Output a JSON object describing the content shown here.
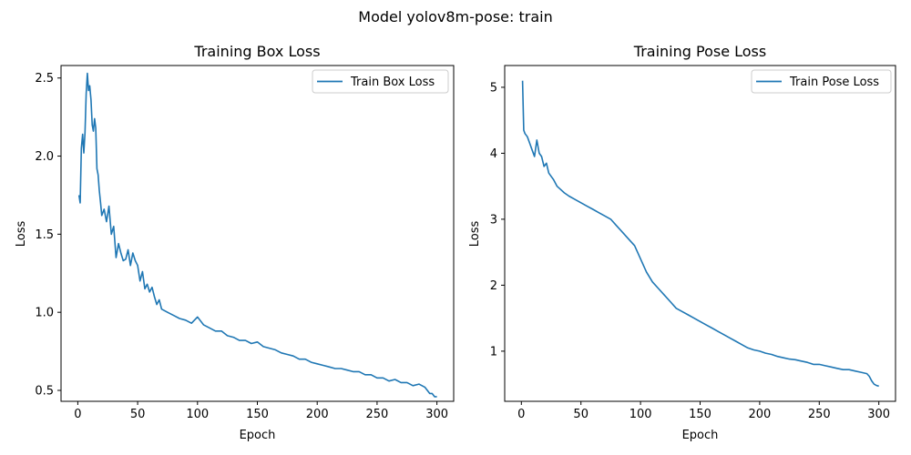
{
  "figure": {
    "title": "Model yolov8m-pose: train"
  },
  "colors": {
    "line": "#1f77b4",
    "axis": "#000000",
    "background": "#ffffff"
  },
  "chart_data": [
    {
      "type": "line",
      "title": "Training Box Loss",
      "xlabel": "Epoch",
      "ylabel": "Loss",
      "xlim": [
        -14,
        314
      ],
      "ylim": [
        0.43,
        2.58
      ],
      "xticks": [
        0,
        50,
        100,
        150,
        200,
        250,
        300
      ],
      "yticks": [
        0.5,
        1.0,
        1.5,
        2.0,
        2.5
      ],
      "ytick_labels": [
        "0.5",
        "1.0",
        "1.5",
        "2.0",
        "2.5"
      ],
      "grid": false,
      "legend": "top-right",
      "series": [
        {
          "name": "Train Box Loss",
          "x": [
            1,
            2,
            3,
            4,
            5,
            6,
            7,
            8,
            9,
            10,
            11,
            12,
            13,
            14,
            15,
            16,
            17,
            18,
            19,
            20,
            22,
            24,
            26,
            28,
            30,
            32,
            34,
            36,
            38,
            40,
            42,
            44,
            46,
            48,
            50,
            52,
            54,
            56,
            58,
            60,
            62,
            64,
            66,
            68,
            70,
            75,
            80,
            85,
            90,
            95,
            100,
            105,
            110,
            115,
            120,
            125,
            130,
            135,
            140,
            145,
            150,
            155,
            160,
            165,
            170,
            175,
            180,
            185,
            190,
            195,
            200,
            205,
            210,
            215,
            220,
            225,
            230,
            235,
            240,
            245,
            250,
            255,
            260,
            265,
            270,
            275,
            280,
            285,
            290,
            292,
            294,
            296,
            298,
            300
          ],
          "y": [
            1.75,
            1.7,
            2.05,
            2.14,
            2.02,
            2.15,
            2.4,
            2.53,
            2.42,
            2.45,
            2.36,
            2.2,
            2.16,
            2.24,
            2.18,
            1.92,
            1.88,
            1.78,
            1.7,
            1.62,
            1.66,
            1.58,
            1.68,
            1.5,
            1.55,
            1.35,
            1.44,
            1.38,
            1.33,
            1.34,
            1.4,
            1.3,
            1.38,
            1.33,
            1.3,
            1.2,
            1.26,
            1.15,
            1.18,
            1.13,
            1.16,
            1.1,
            1.05,
            1.08,
            1.02,
            1.0,
            0.98,
            0.96,
            0.95,
            0.93,
            0.97,
            0.92,
            0.9,
            0.88,
            0.88,
            0.85,
            0.84,
            0.82,
            0.82,
            0.8,
            0.81,
            0.78,
            0.77,
            0.76,
            0.74,
            0.73,
            0.72,
            0.7,
            0.7,
            0.68,
            0.67,
            0.66,
            0.65,
            0.64,
            0.64,
            0.63,
            0.62,
            0.62,
            0.6,
            0.6,
            0.58,
            0.58,
            0.56,
            0.57,
            0.55,
            0.55,
            0.53,
            0.54,
            0.52,
            0.5,
            0.48,
            0.48,
            0.46,
            0.46
          ]
        }
      ]
    },
    {
      "type": "line",
      "title": "Training Pose Loss",
      "xlabel": "Epoch",
      "ylabel": "Loss",
      "xlim": [
        -14,
        314
      ],
      "ylim": [
        0.24,
        5.33
      ],
      "xticks": [
        0,
        50,
        100,
        150,
        200,
        250,
        300
      ],
      "yticks": [
        1,
        2,
        3,
        4,
        5
      ],
      "ytick_labels": [
        "1",
        "2",
        "3",
        "4",
        "5"
      ],
      "grid": false,
      "legend": "top-right",
      "series": [
        {
          "name": "Train Pose Loss",
          "x": [
            1,
            2,
            3,
            5,
            7,
            9,
            11,
            13,
            15,
            17,
            19,
            21,
            23,
            25,
            27,
            30,
            33,
            36,
            40,
            45,
            50,
            55,
            60,
            65,
            70,
            75,
            80,
            85,
            90,
            95,
            100,
            105,
            110,
            115,
            120,
            125,
            130,
            135,
            140,
            145,
            150,
            155,
            160,
            165,
            170,
            175,
            180,
            185,
            190,
            195,
            200,
            205,
            210,
            215,
            220,
            225,
            230,
            235,
            240,
            245,
            250,
            255,
            260,
            265,
            270,
            275,
            280,
            285,
            290,
            292,
            294,
            296,
            298,
            300
          ],
          "y": [
            5.1,
            4.35,
            4.3,
            4.25,
            4.15,
            4.05,
            3.95,
            4.2,
            4.0,
            3.95,
            3.8,
            3.85,
            3.7,
            3.65,
            3.6,
            3.5,
            3.45,
            3.4,
            3.35,
            3.3,
            3.25,
            3.2,
            3.15,
            3.1,
            3.05,
            3.0,
            2.9,
            2.8,
            2.7,
            2.6,
            2.4,
            2.2,
            2.05,
            1.95,
            1.85,
            1.75,
            1.65,
            1.6,
            1.55,
            1.5,
            1.45,
            1.4,
            1.35,
            1.3,
            1.25,
            1.2,
            1.15,
            1.1,
            1.05,
            1.02,
            1.0,
            0.97,
            0.95,
            0.92,
            0.9,
            0.88,
            0.87,
            0.85,
            0.83,
            0.8,
            0.8,
            0.78,
            0.76,
            0.74,
            0.72,
            0.72,
            0.7,
            0.68,
            0.66,
            0.62,
            0.55,
            0.5,
            0.48,
            0.47
          ]
        }
      ]
    }
  ]
}
